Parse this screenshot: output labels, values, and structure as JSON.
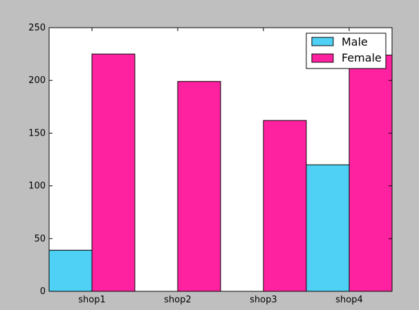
{
  "chart_data": {
    "type": "bar",
    "title": "",
    "xlabel": "",
    "ylabel": "",
    "categories": [
      "shop1",
      "shop2",
      "shop3",
      "shop4"
    ],
    "ylim": [
      0,
      250
    ],
    "yticks": [
      0,
      50,
      100,
      150,
      200,
      250
    ],
    "grid": false,
    "legend_position": "top-right",
    "series": [
      {
        "name": "Male",
        "color": "#4fd1f5",
        "values": [
          39,
          0,
          0,
          120
        ]
      },
      {
        "name": "Female",
        "color": "#ff22a0",
        "values": [
          225,
          199,
          162,
          224
        ]
      }
    ]
  }
}
